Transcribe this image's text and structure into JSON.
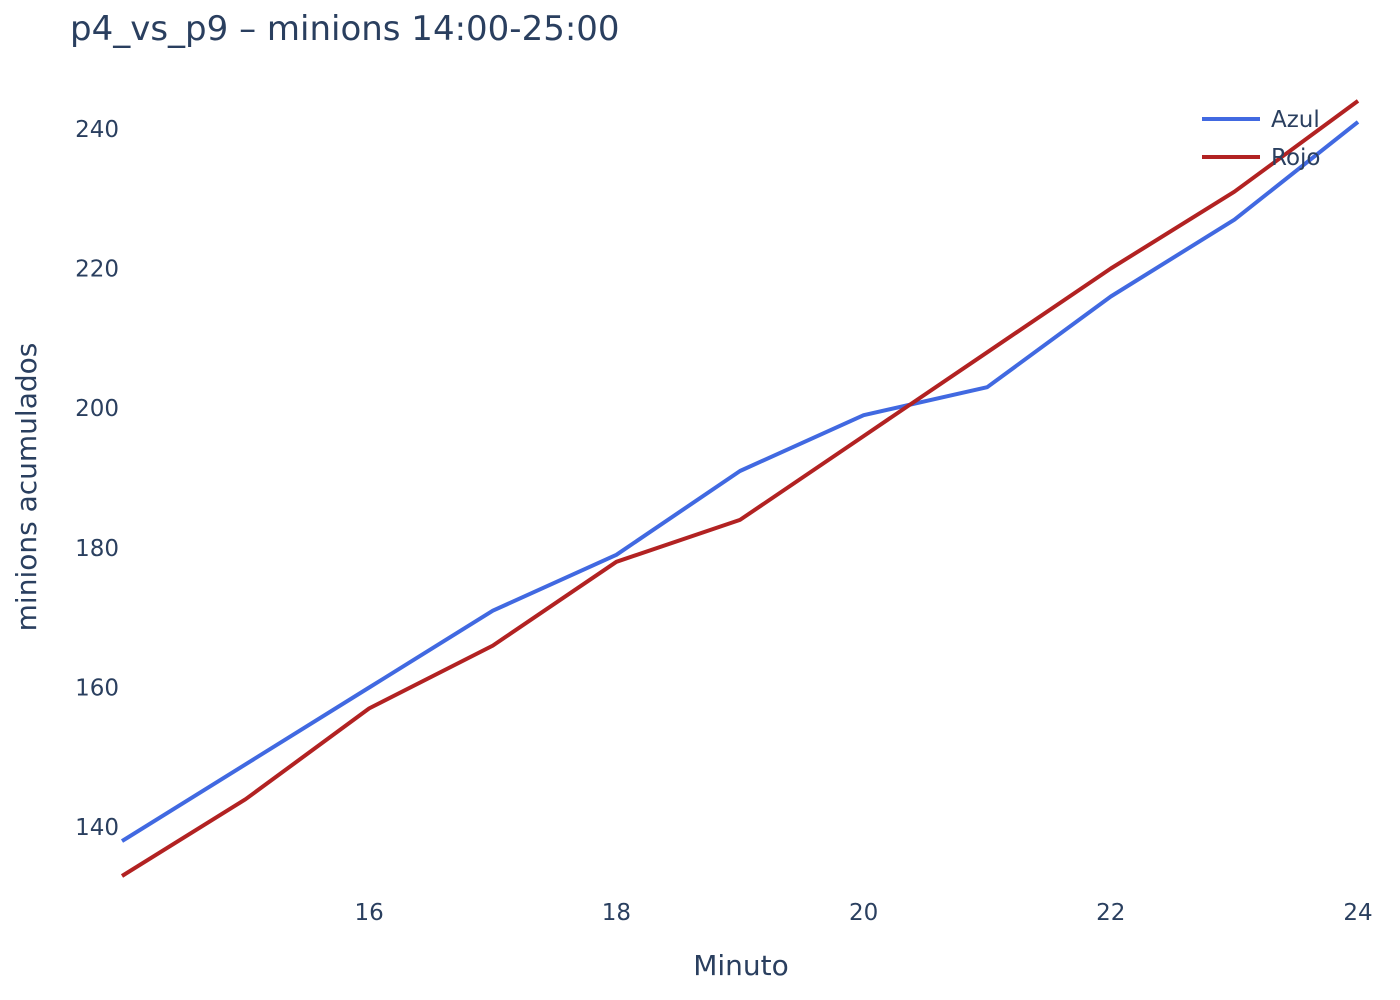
{
  "chart_data": {
    "type": "line",
    "title": "p4_vs_p9 – minions 14:00-25:00",
    "xlabel": "Minuto",
    "ylabel": "minions acumulados",
    "xlim": [
      14,
      24
    ],
    "ylim": [
      131,
      247
    ],
    "xticks": [
      16,
      18,
      20,
      22,
      24
    ],
    "yticks": [
      140,
      160,
      180,
      200,
      220,
      240
    ],
    "legend_position": "top-right",
    "x": [
      14,
      15,
      16,
      17,
      18,
      19,
      20,
      21,
      22,
      23,
      24
    ],
    "series": [
      {
        "name": "Azul",
        "color": "#4169e1",
        "values": [
          138,
          149,
          160,
          171,
          179,
          191,
          199,
          203,
          216,
          227,
          241
        ]
      },
      {
        "name": "Rojo",
        "color": "#b22222",
        "values": [
          133,
          144,
          157,
          166,
          178,
          184,
          196,
          208,
          220,
          231,
          244
        ]
      }
    ]
  }
}
